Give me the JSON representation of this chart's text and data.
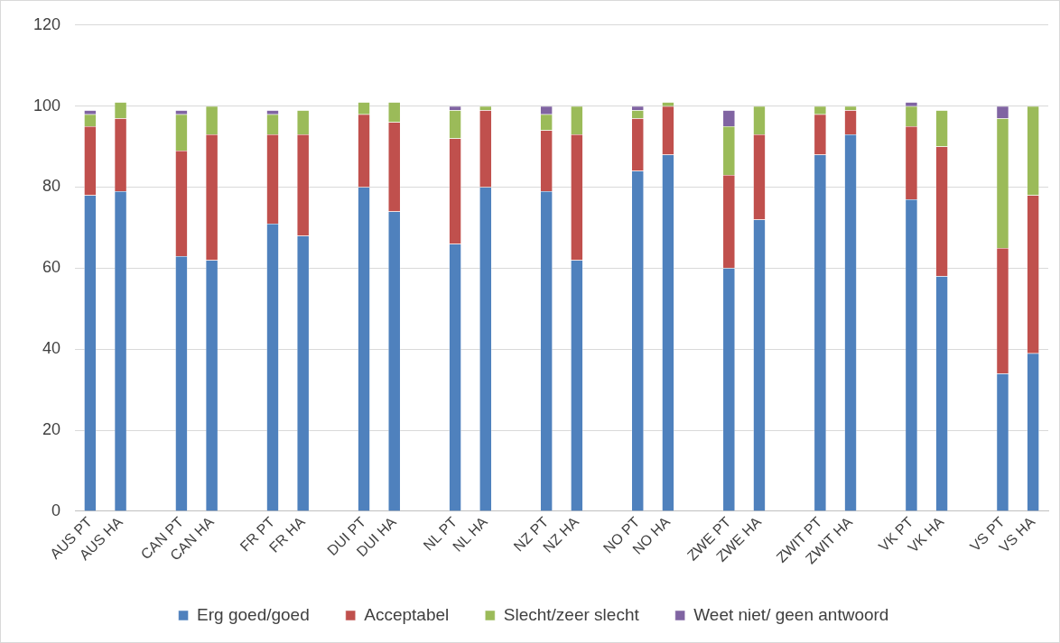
{
  "chart_data": {
    "type": "bar",
    "stacked": true,
    "categories": [
      "AUS PT",
      "AUS HA",
      null,
      "CAN PT",
      "CAN HA",
      null,
      "FR PT",
      "FR HA",
      null,
      "DUI PT",
      "DUI HA",
      null,
      "NL PT",
      "NL HA",
      null,
      "NZ PT",
      "NZ HA",
      null,
      "NO PT",
      "NO HA",
      null,
      "ZWE PT",
      "ZWE HA",
      null,
      "ZWIT PT",
      "ZWIT HA",
      null,
      "VK PT",
      "VK HA",
      null,
      "VS PT",
      "VS HA"
    ],
    "series": [
      {
        "name": "Erg goed/goed",
        "color": "#4f81bd",
        "values": [
          78,
          79,
          null,
          63,
          62,
          null,
          71,
          68,
          null,
          80,
          74,
          null,
          66,
          80,
          null,
          79,
          62,
          null,
          84,
          88,
          null,
          60,
          72,
          null,
          88,
          93,
          null,
          77,
          58,
          null,
          34,
          39
        ]
      },
      {
        "name": "Acceptabel",
        "color": "#c0504d",
        "values": [
          17,
          18,
          null,
          26,
          31,
          null,
          22,
          25,
          null,
          18,
          22,
          null,
          26,
          19,
          null,
          15,
          31,
          null,
          13,
          12,
          null,
          23,
          21,
          null,
          10,
          6,
          null,
          18,
          32,
          null,
          31,
          39
        ]
      },
      {
        "name": "Slecht/zeer slecht",
        "color": "#9bbb59",
        "values": [
          3,
          4,
          null,
          9,
          7,
          null,
          5,
          6,
          null,
          3,
          5,
          null,
          7,
          1,
          null,
          4,
          7,
          null,
          2,
          1,
          null,
          12,
          7,
          null,
          2,
          1,
          null,
          5,
          9,
          null,
          32,
          22
        ]
      },
      {
        "name": "Weet niet/ geen antwoord",
        "color": "#8064a2",
        "values": [
          1,
          null,
          null,
          1,
          null,
          null,
          1,
          null,
          null,
          null,
          null,
          null,
          1,
          null,
          null,
          2,
          null,
          null,
          1,
          null,
          null,
          4,
          null,
          null,
          null,
          null,
          null,
          1,
          null,
          null,
          3,
          null
        ]
      }
    ],
    "ylim": [
      0,
      120
    ],
    "yticks": [
      0,
      20,
      40,
      60,
      80,
      100,
      120
    ],
    "grid": "y",
    "legend": "bottom"
  }
}
